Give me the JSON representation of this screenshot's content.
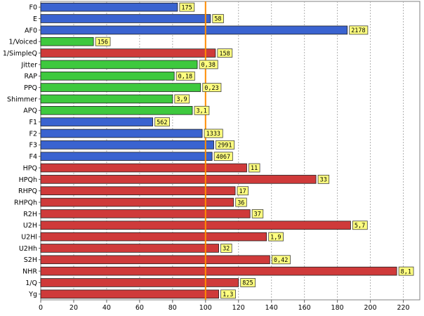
{
  "chart_data": {
    "type": "bar",
    "orientation": "horizontal",
    "categories": [
      "F0",
      "E",
      "AF0",
      "1/Voiced",
      "1/SimpleQ",
      "Jitter",
      "RAP",
      "PPQ",
      "Shimmer",
      "APQ",
      "F1",
      "F2",
      "F3",
      "F4",
      "HPQ",
      "HPQh",
      "RHPQ",
      "RHPQh",
      "R2H",
      "U2H",
      "U2Hl",
      "U2Hh",
      "S2H",
      "NHR",
      "1/Q",
      "Yg"
    ],
    "values": [
      83,
      103,
      186,
      32,
      106,
      95,
      81,
      97,
      80,
      92,
      68,
      98,
      105,
      104,
      125,
      167,
      118,
      117,
      127,
      188,
      137,
      108,
      139,
      216,
      120,
      108
    ],
    "data_labels": [
      "175",
      "58",
      "2178",
      "156",
      "158",
      "0,38",
      "0,18",
      "0,23",
      "3,9",
      "3,1",
      "562",
      "1333",
      "2991",
      "4067",
      "11",
      "33",
      "17",
      "36",
      "37",
      "5,7",
      "1,9",
      "32",
      "0,42",
      "8,1",
      "825",
      "1,3"
    ],
    "colors": [
      "blue",
      "blue",
      "blue",
      "green",
      "red",
      "green",
      "green",
      "green",
      "green",
      "green",
      "blue",
      "blue",
      "blue",
      "blue",
      "red",
      "red",
      "red",
      "red",
      "red",
      "red",
      "red",
      "red",
      "red",
      "red",
      "red",
      "red"
    ],
    "palette": {
      "blue": "#3a63d0",
      "green": "#3ec93e",
      "red": "#cf3a3a"
    },
    "label_fill": "#ffff80",
    "reference_line": {
      "value": 100,
      "color": "#ff8c00"
    },
    "xlim": [
      0,
      230
    ],
    "xticks": [
      0,
      20,
      40,
      60,
      80,
      100,
      120,
      140,
      160,
      180,
      200,
      220
    ],
    "grid": true,
    "title": "",
    "xlabel": "",
    "ylabel": ""
  }
}
